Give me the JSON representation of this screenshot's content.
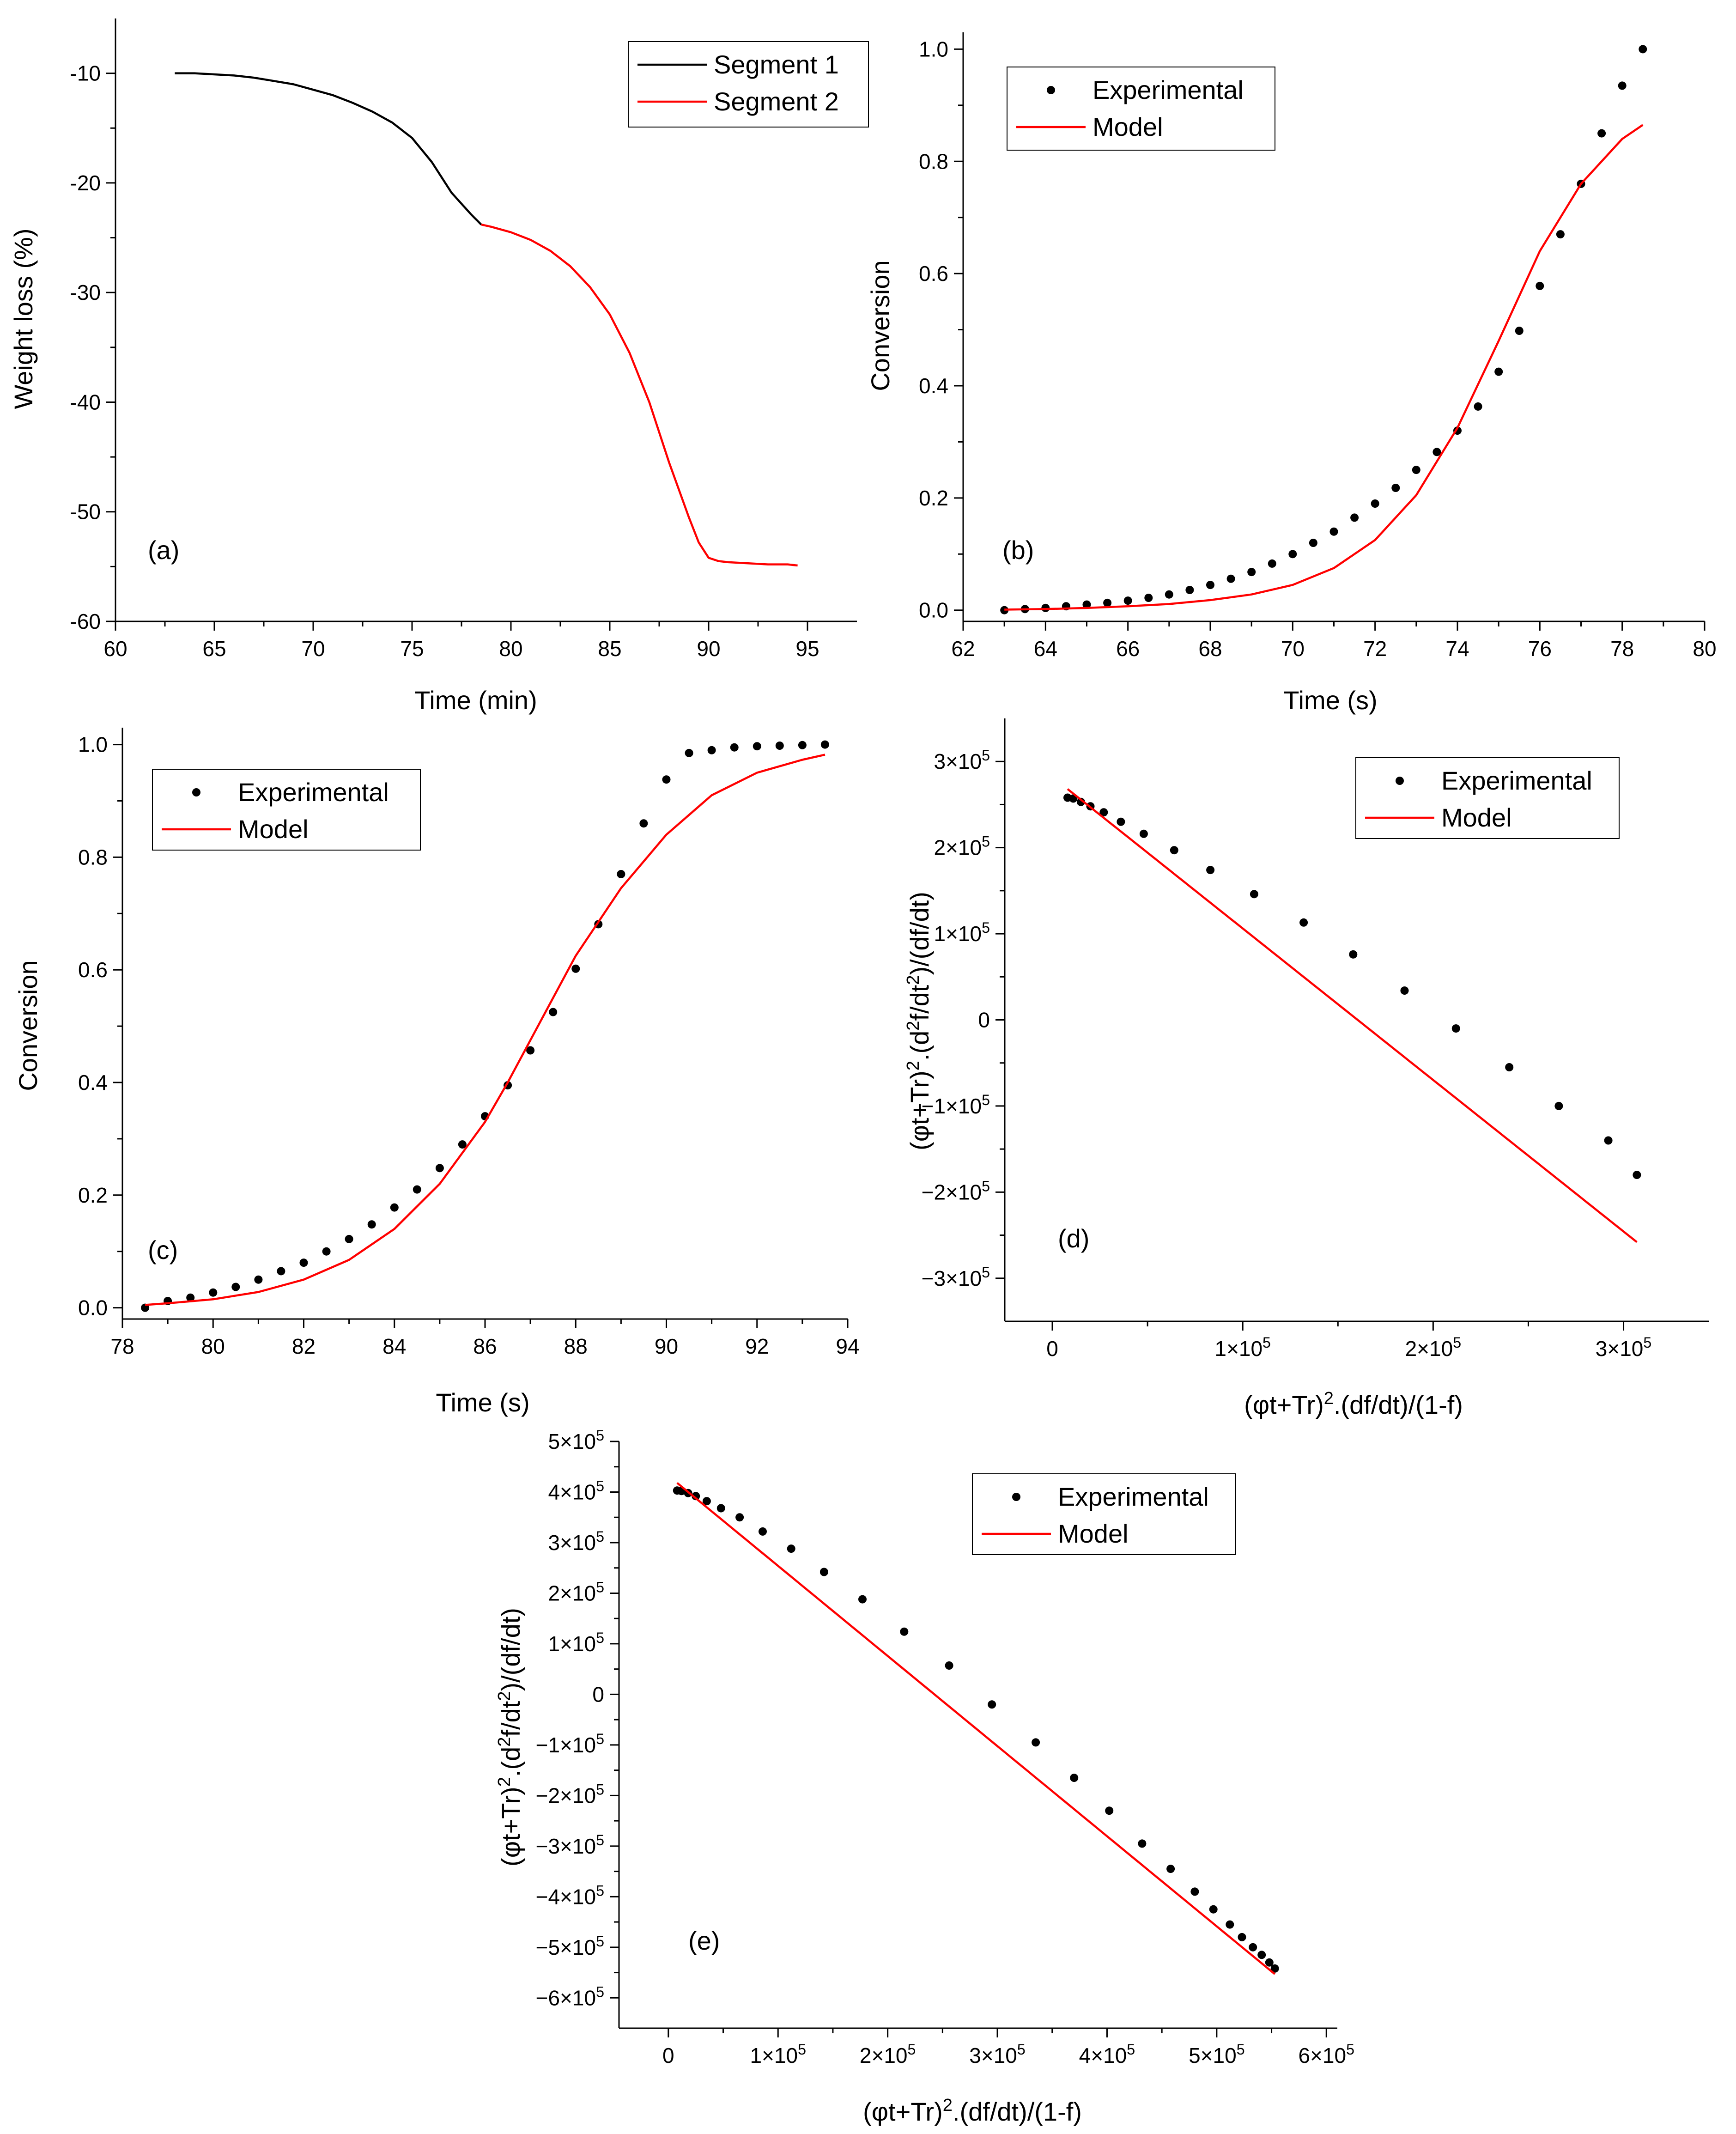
{
  "chart_data": [
    {
      "id": "a",
      "type": "line",
      "panel_label": "(a)",
      "title": "",
      "xlabel": "Time (min)",
      "ylabel": "Weight loss (%)",
      "xlim": [
        60,
        97.5
      ],
      "ylim": [
        -60,
        -5
      ],
      "xticks": [
        60,
        65,
        70,
        75,
        80,
        85,
        90,
        95
      ],
      "xtick_labels": [
        "60",
        "65",
        "70",
        "75",
        "80",
        "85",
        "90",
        "95"
      ],
      "yticks": [
        -60,
        -50,
        -40,
        -30,
        -20,
        -10
      ],
      "ytick_labels": [
        "-60",
        "-50",
        "-40",
        "-30",
        "-20",
        "-10"
      ],
      "grid": false,
      "legend_position": "top-right",
      "series": [
        {
          "name": "Segment 1",
          "style": "line",
          "color": "#000000",
          "x": [
            63,
            64,
            65,
            66,
            67,
            68,
            69,
            70,
            71,
            72,
            73,
            74,
            75,
            76,
            77,
            78,
            78.5
          ],
          "y": [
            -10.0,
            -10.0,
            -10.1,
            -10.2,
            -10.4,
            -10.7,
            -11.0,
            -11.5,
            -12.0,
            -12.7,
            -13.5,
            -14.5,
            -15.9,
            -18.1,
            -20.9,
            -22.9,
            -23.8
          ]
        },
        {
          "name": "Segment 2",
          "style": "line",
          "color": "#ff0000",
          "x": [
            78.5,
            79,
            80,
            81,
            82,
            83,
            84,
            85,
            86,
            87,
            88,
            89,
            89.5,
            90,
            90.5,
            91,
            92,
            93,
            94,
            94.5
          ],
          "y": [
            -23.8,
            -24.0,
            -24.5,
            -25.2,
            -26.2,
            -27.6,
            -29.5,
            -32.0,
            -35.5,
            -40.0,
            -45.5,
            -50.5,
            -52.8,
            -54.2,
            -54.5,
            -54.6,
            -54.7,
            -54.8,
            -54.8,
            -54.9
          ]
        }
      ]
    },
    {
      "id": "b",
      "type": "scatter",
      "panel_label": "(b)",
      "title": "",
      "xlabel": "Time (s)",
      "ylabel": "Conversion",
      "xlim": [
        62,
        80
      ],
      "ylim": [
        -0.02,
        1.03
      ],
      "xticks": [
        62,
        64,
        66,
        68,
        70,
        72,
        74,
        76,
        78,
        80
      ],
      "xtick_labels": [
        "62",
        "64",
        "66",
        "68",
        "70",
        "72",
        "74",
        "76",
        "78",
        "80"
      ],
      "yticks": [
        0,
        0.2,
        0.4,
        0.6,
        0.8,
        1.0
      ],
      "ytick_labels": [
        "0.0",
        "0.2",
        "0.4",
        "0.6",
        "0.8",
        "1.0"
      ],
      "grid": false,
      "legend_position": "top-left",
      "series": [
        {
          "name": "Experimental",
          "style": "dots",
          "color": "#000000",
          "x": [
            63,
            63.5,
            64,
            64.5,
            65,
            65.5,
            66,
            66.5,
            67,
            67.5,
            68,
            68.5,
            69,
            69.5,
            70,
            70.5,
            71,
            71.5,
            72,
            72.5,
            73,
            73.5,
            74,
            74.5,
            75,
            75.5,
            76,
            76.5,
            77,
            77.5,
            78,
            78.5
          ],
          "y": [
            0.0,
            0.002,
            0.004,
            0.007,
            0.01,
            0.013,
            0.017,
            0.022,
            0.028,
            0.036,
            0.045,
            0.056,
            0.068,
            0.083,
            0.1,
            0.12,
            0.14,
            0.165,
            0.19,
            0.218,
            0.25,
            0.282,
            0.32,
            0.363,
            0.425,
            0.498,
            0.578,
            0.67,
            0.76,
            0.85,
            0.935,
            1.0
          ]
        },
        {
          "name": "Model",
          "style": "line",
          "color": "#ff0000",
          "x": [
            63,
            64,
            65,
            66,
            67,
            68,
            69,
            70,
            71,
            72,
            73,
            74,
            75,
            76,
            77,
            78,
            78.5
          ],
          "y": [
            0.001,
            0.002,
            0.004,
            0.007,
            0.011,
            0.018,
            0.028,
            0.045,
            0.075,
            0.125,
            0.205,
            0.325,
            0.48,
            0.64,
            0.76,
            0.84,
            0.865
          ]
        }
      ]
    },
    {
      "id": "c",
      "type": "scatter",
      "panel_label": "(c)",
      "title": "",
      "xlabel": "Time (s)",
      "ylabel": "Conversion",
      "xlim": [
        78,
        94
      ],
      "ylim": [
        -0.02,
        1.03
      ],
      "xticks": [
        78,
        80,
        82,
        84,
        86,
        88,
        90,
        92,
        94
      ],
      "xtick_labels": [
        "78",
        "80",
        "82",
        "84",
        "86",
        "88",
        "90",
        "92",
        "94"
      ],
      "yticks": [
        0,
        0.2,
        0.4,
        0.6,
        0.8,
        1.0
      ],
      "ytick_labels": [
        "0.0",
        "0.2",
        "0.4",
        "0.6",
        "0.8",
        "1.0"
      ],
      "grid": false,
      "legend_position": "top-left",
      "series": [
        {
          "name": "Experimental",
          "style": "dots",
          "color": "#000000",
          "x": [
            78.5,
            79,
            79.5,
            80,
            80.5,
            81,
            81.5,
            82,
            82.5,
            83,
            83.5,
            84,
            84.5,
            85,
            85.5,
            86,
            86.5,
            87,
            87.5,
            88,
            88.5,
            89,
            89.5,
            90,
            90.5,
            91,
            91.5,
            92,
            92.5,
            93,
            93.5
          ],
          "y": [
            0.0,
            0.012,
            0.018,
            0.027,
            0.037,
            0.05,
            0.065,
            0.08,
            0.1,
            0.122,
            0.148,
            0.178,
            0.21,
            0.248,
            0.29,
            0.34,
            0.395,
            0.457,
            0.525,
            0.602,
            0.681,
            0.77,
            0.86,
            0.938,
            0.985,
            0.99,
            0.995,
            0.997,
            0.998,
            0.999,
            1.0
          ]
        },
        {
          "name": "Model",
          "style": "line",
          "color": "#ff0000",
          "x": [
            78.5,
            79,
            80,
            81,
            82,
            83,
            84,
            85,
            86,
            86.5,
            87,
            87.5,
            88,
            89,
            90,
            91,
            92,
            93,
            93.5
          ],
          "y": [
            0.005,
            0.008,
            0.015,
            0.028,
            0.05,
            0.085,
            0.14,
            0.22,
            0.33,
            0.4,
            0.475,
            0.55,
            0.625,
            0.745,
            0.84,
            0.91,
            0.95,
            0.973,
            0.982
          ]
        }
      ]
    },
    {
      "id": "d",
      "type": "scatter",
      "panel_label": "(d)",
      "title": "",
      "xlabel": "(φt+Tr)^2.(df/dt)/(1-f)",
      "ylabel": "(φt+Tr)^2.(d^2f/dt^2)/(df/dt)",
      "xlim": [
        -25000,
        345000
      ],
      "ylim": [
        -350000,
        350000
      ],
      "xticks": [
        0,
        100000,
        200000,
        300000
      ],
      "xtick_labels": [
        {
          "mant": "0",
          "base": "",
          "exp": ""
        },
        {
          "mant": "1",
          "base": "×10",
          "exp": "5"
        },
        {
          "mant": "2",
          "base": "×10",
          "exp": "5"
        },
        {
          "mant": "3",
          "base": "×10",
          "exp": "5"
        }
      ],
      "yticks": [
        -300000,
        -200000,
        -100000,
        0,
        100000,
        200000,
        300000
      ],
      "ytick_labels": [
        {
          "mant": "−3",
          "base": "×10",
          "exp": "5"
        },
        {
          "mant": "−2",
          "base": "×10",
          "exp": "5"
        },
        {
          "mant": "−1",
          "base": "×10",
          "exp": "5"
        },
        {
          "mant": "0",
          "base": "",
          "exp": ""
        },
        {
          "mant": "1",
          "base": "×10",
          "exp": "5"
        },
        {
          "mant": "2",
          "base": "×10",
          "exp": "5"
        },
        {
          "mant": "3",
          "base": "×10",
          "exp": "5"
        }
      ],
      "grid": false,
      "legend_position": "top-right",
      "series": [
        {
          "name": "Experimental",
          "style": "dots",
          "color": "#000000",
          "x": [
            8000,
            11000,
            15000,
            20000,
            27000,
            36000,
            48000,
            64000,
            83000,
            106000,
            132000,
            158000,
            185000,
            212000,
            240000,
            266000,
            292000,
            307000
          ],
          "y": [
            258000,
            257000,
            253000,
            248000,
            241000,
            230000,
            216000,
            197000,
            174000,
            146000,
            113000,
            76000,
            34000,
            -10000,
            -55000,
            -100000,
            -140000,
            -180000
          ]
        },
        {
          "name": "Model",
          "style": "line",
          "color": "#ff0000",
          "x": [
            8000,
            307000
          ],
          "y": [
            268000,
            -258000
          ]
        }
      ]
    },
    {
      "id": "e",
      "type": "scatter",
      "panel_label": "(e)",
      "title": "",
      "xlabel": "(φt+Tr)^2.(df/dt)/(1-f)",
      "ylabel": "(φt+Tr)^2.(d^2f/dt^2)/(df/dt)",
      "xlim": [
        -45000,
        610000
      ],
      "ylim": [
        -660000,
        500000
      ],
      "xticks": [
        0,
        100000,
        200000,
        300000,
        400000,
        500000,
        600000
      ],
      "xtick_labels": [
        {
          "mant": "0",
          "base": "",
          "exp": ""
        },
        {
          "mant": "1",
          "base": "×10",
          "exp": "5"
        },
        {
          "mant": "2",
          "base": "×10",
          "exp": "5"
        },
        {
          "mant": "3",
          "base": "×10",
          "exp": "5"
        },
        {
          "mant": "4",
          "base": "×10",
          "exp": "5"
        },
        {
          "mant": "5",
          "base": "×10",
          "exp": "5"
        },
        {
          "mant": "6",
          "base": "×10",
          "exp": "5"
        }
      ],
      "yticks": [
        -600000,
        -500000,
        -400000,
        -300000,
        -200000,
        -100000,
        0,
        100000,
        200000,
        300000,
        400000,
        500000
      ],
      "ytick_labels": [
        {
          "mant": "−6",
          "base": "×10",
          "exp": "5"
        },
        {
          "mant": "−5",
          "base": "×10",
          "exp": "5"
        },
        {
          "mant": "−4",
          "base": "×10",
          "exp": "5"
        },
        {
          "mant": "−3",
          "base": "×10",
          "exp": "5"
        },
        {
          "mant": "−2",
          "base": "×10",
          "exp": "5"
        },
        {
          "mant": "−1",
          "base": "×10",
          "exp": "5"
        },
        {
          "mant": "0",
          "base": "",
          "exp": ""
        },
        {
          "mant": "1",
          "base": "×10",
          "exp": "5"
        },
        {
          "mant": "2",
          "base": "×10",
          "exp": "5"
        },
        {
          "mant": "3",
          "base": "×10",
          "exp": "5"
        },
        {
          "mant": "4",
          "base": "×10",
          "exp": "5"
        },
        {
          "mant": "5",
          "base": "×10",
          "exp": "5"
        }
      ],
      "grid": false,
      "legend_position": "top-right",
      "series": [
        {
          "name": "Experimental",
          "style": "dots",
          "color": "#000000",
          "x": [
            8000,
            12000,
            18000,
            25000,
            35000,
            48000,
            65000,
            86000,
            112000,
            142000,
            177000,
            215000,
            256000,
            295000,
            335000,
            370000,
            402000,
            432000,
            458000,
            480000,
            497000,
            512000,
            523000,
            533000,
            541000,
            548000,
            553000
          ],
          "y": [
            403000,
            402000,
            398000,
            392000,
            382000,
            368000,
            350000,
            322000,
            288000,
            242000,
            188000,
            124000,
            57000,
            -20000,
            -95000,
            -165000,
            -230000,
            -295000,
            -345000,
            -390000,
            -425000,
            -455000,
            -480000,
            -500000,
            -515000,
            -530000,
            -542000
          ]
        },
        {
          "name": "Model",
          "style": "line",
          "color": "#ff0000",
          "x": [
            8000,
            553000
          ],
          "y": [
            418000,
            -553000
          ]
        }
      ]
    }
  ]
}
